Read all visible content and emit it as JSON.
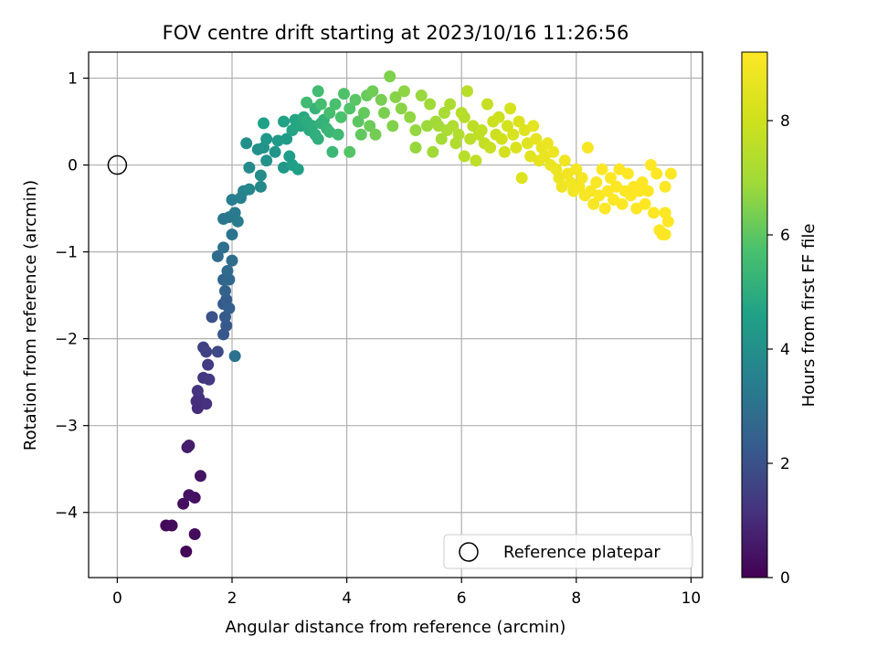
{
  "chart_data": {
    "type": "scatter",
    "title": "FOV centre drift starting at 2023/10/16 11:26:56",
    "xlabel": "Angular distance from reference (arcmin)",
    "ylabel": "Rotation from reference (arcmin)",
    "xlim": [
      -0.5,
      10.2
    ],
    "ylim": [
      -4.75,
      1.3
    ],
    "xticks": [
      0,
      2,
      4,
      6,
      8,
      10
    ],
    "yticks": [
      1,
      0,
      -1,
      -2,
      -3,
      -4
    ],
    "xtick_labels": [
      "0",
      "2",
      "4",
      "6",
      "8",
      "10"
    ],
    "ytick_labels": [
      "1",
      "0",
      "−1",
      "−2",
      "−3",
      "−4"
    ],
    "grid": true,
    "colormap": "viridis",
    "colorbar": {
      "label": "Hours from first FF file",
      "range": [
        0,
        9.2
      ],
      "ticks": [
        0,
        2,
        4,
        6,
        8
      ],
      "tick_labels": [
        "0",
        "2",
        "4",
        "6",
        "8"
      ]
    },
    "legend": {
      "position": "lower-right",
      "entries": [
        "Reference platepar"
      ]
    },
    "reference_point": {
      "x": 0,
      "y": 0,
      "marker": "open-circle"
    },
    "series": [
      {
        "colored_by": "hours",
        "points": [
          [
            1.2,
            -4.45,
            0.1
          ],
          [
            0.85,
            -4.15,
            0.15
          ],
          [
            0.95,
            -4.15,
            0.2
          ],
          [
            1.35,
            -4.25,
            0.25
          ],
          [
            1.15,
            -3.9,
            0.3
          ],
          [
            1.35,
            -3.83,
            0.35
          ],
          [
            1.25,
            -3.8,
            0.4
          ],
          [
            1.45,
            -3.58,
            0.45
          ],
          [
            1.22,
            -3.25,
            0.6
          ],
          [
            1.25,
            -3.23,
            0.65
          ],
          [
            1.4,
            -2.8,
            1.0
          ],
          [
            1.38,
            -2.72,
            1.05
          ],
          [
            1.42,
            -2.68,
            1.1
          ],
          [
            1.55,
            -2.75,
            1.15
          ],
          [
            1.4,
            -2.6,
            1.2
          ],
          [
            1.5,
            -2.45,
            1.3
          ],
          [
            1.6,
            -2.47,
            1.35
          ],
          [
            1.58,
            -2.3,
            1.45
          ],
          [
            1.5,
            -2.1,
            1.55
          ],
          [
            1.55,
            -2.15,
            1.6
          ],
          [
            1.75,
            -2.15,
            1.8
          ],
          [
            1.65,
            -1.75,
            2.0
          ],
          [
            1.85,
            -1.95,
            2.15
          ],
          [
            1.9,
            -1.85,
            2.2
          ],
          [
            1.88,
            -1.75,
            2.25
          ],
          [
            1.85,
            -1.6,
            2.3
          ],
          [
            1.9,
            -1.55,
            2.35
          ],
          [
            1.95,
            -1.65,
            2.4
          ],
          [
            1.88,
            -1.45,
            2.5
          ],
          [
            1.85,
            -1.32,
            2.6
          ],
          [
            1.95,
            -1.32,
            2.7
          ],
          [
            1.92,
            -1.22,
            2.75
          ],
          [
            1.75,
            -1.05,
            2.8
          ],
          [
            2.0,
            -1.1,
            2.85
          ],
          [
            1.85,
            -0.95,
            2.95
          ],
          [
            2.05,
            -2.2,
            3.0
          ],
          [
            2.0,
            -0.8,
            3.05
          ],
          [
            1.85,
            -0.62,
            3.15
          ],
          [
            1.95,
            -0.6,
            3.2
          ],
          [
            2.05,
            -0.55,
            3.3
          ],
          [
            2.1,
            -0.65,
            3.35
          ],
          [
            2.0,
            -0.4,
            3.4
          ],
          [
            2.15,
            -0.38,
            3.5
          ],
          [
            2.2,
            -0.3,
            3.6
          ],
          [
            2.3,
            -0.28,
            3.7
          ],
          [
            2.5,
            -0.25,
            3.8
          ],
          [
            2.3,
            -0.03,
            3.85
          ],
          [
            2.5,
            -0.12,
            3.9
          ],
          [
            2.25,
            0.25,
            4.0
          ],
          [
            2.45,
            0.18,
            4.05
          ],
          [
            2.6,
            0.05,
            4.1
          ],
          [
            2.55,
            0.2,
            4.15
          ],
          [
            2.75,
            0.15,
            4.2
          ],
          [
            2.6,
            0.3,
            4.25
          ],
          [
            2.9,
            -0.03,
            4.3
          ],
          [
            2.8,
            0.28,
            4.35
          ],
          [
            2.95,
            0.3,
            4.4
          ],
          [
            3.0,
            0.1,
            4.45
          ],
          [
            3.05,
            0.0,
            4.5
          ],
          [
            3.15,
            -0.05,
            4.55
          ],
          [
            2.55,
            0.48,
            4.6
          ],
          [
            2.9,
            0.5,
            4.65
          ],
          [
            3.05,
            0.4,
            4.7
          ],
          [
            3.1,
            0.52,
            4.75
          ],
          [
            3.2,
            0.45,
            4.8
          ],
          [
            3.25,
            0.55,
            4.85
          ],
          [
            3.35,
            0.4,
            4.9
          ],
          [
            3.3,
            0.5,
            4.95
          ],
          [
            3.4,
            0.45,
            5.0
          ],
          [
            3.45,
            0.35,
            5.05
          ],
          [
            3.5,
            0.3,
            5.1
          ],
          [
            3.55,
            0.48,
            5.15
          ],
          [
            3.6,
            0.52,
            5.2
          ],
          [
            3.45,
            0.65,
            5.25
          ],
          [
            3.65,
            0.42,
            5.3
          ],
          [
            3.7,
            0.38,
            5.35
          ],
          [
            3.75,
            0.15,
            5.4
          ],
          [
            3.85,
            0.35,
            5.45
          ],
          [
            3.3,
            0.72,
            5.5
          ],
          [
            3.5,
            0.85,
            5.55
          ],
          [
            3.55,
            0.7,
            5.6
          ],
          [
            3.7,
            0.6,
            5.65
          ],
          [
            3.8,
            0.7,
            5.7
          ],
          [
            3.9,
            0.55,
            5.75
          ],
          [
            3.95,
            0.82,
            5.8
          ],
          [
            4.05,
            0.65,
            5.85
          ],
          [
            4.05,
            0.15,
            5.9
          ],
          [
            4.15,
            0.75,
            5.95
          ],
          [
            4.2,
            0.5,
            6.0
          ],
          [
            4.25,
            0.35,
            6.05
          ],
          [
            4.3,
            0.6,
            6.1
          ],
          [
            4.35,
            0.8,
            6.15
          ],
          [
            4.4,
            0.45,
            6.2
          ],
          [
            4.45,
            0.85,
            6.25
          ],
          [
            4.5,
            0.35,
            6.3
          ],
          [
            4.6,
            0.75,
            6.35
          ],
          [
            4.65,
            0.6,
            6.4
          ],
          [
            4.75,
            1.02,
            6.45
          ],
          [
            4.8,
            0.45,
            6.5
          ],
          [
            4.85,
            0.78,
            6.55
          ],
          [
            4.95,
            0.65,
            6.6
          ],
          [
            5.0,
            0.85,
            6.65
          ],
          [
            5.1,
            0.55,
            6.7
          ],
          [
            5.2,
            0.4,
            6.75
          ],
          [
            5.2,
            0.2,
            6.78
          ],
          [
            5.3,
            0.8,
            6.8
          ],
          [
            5.4,
            0.45,
            6.85
          ],
          [
            5.45,
            0.7,
            6.9
          ],
          [
            5.5,
            0.15,
            6.92
          ],
          [
            5.55,
            0.5,
            6.95
          ],
          [
            5.6,
            0.45,
            7.0
          ],
          [
            5.65,
            0.3,
            7.05
          ],
          [
            5.7,
            0.6,
            7.1
          ],
          [
            5.75,
            0.4,
            7.15
          ],
          [
            5.8,
            0.7,
            7.2
          ],
          [
            5.85,
            0.45,
            7.25
          ],
          [
            5.9,
            0.25,
            7.3
          ],
          [
            5.95,
            0.35,
            7.35
          ],
          [
            6.0,
            0.6,
            7.4
          ],
          [
            6.05,
            0.55,
            7.45
          ],
          [
            6.05,
            0.1,
            7.48
          ],
          [
            6.1,
            0.85,
            7.5
          ],
          [
            6.15,
            0.3,
            7.55
          ],
          [
            6.2,
            0.45,
            7.6
          ],
          [
            6.25,
            0.05,
            7.62
          ],
          [
            6.3,
            0.35,
            7.65
          ],
          [
            6.35,
            0.4,
            7.7
          ],
          [
            6.4,
            0.25,
            7.75
          ],
          [
            6.45,
            0.7,
            7.8
          ],
          [
            6.5,
            0.2,
            7.85
          ],
          [
            6.55,
            0.5,
            7.9
          ],
          [
            6.6,
            0.35,
            7.95
          ],
          [
            6.65,
            0.55,
            8.0
          ],
          [
            6.7,
            0.3,
            8.05
          ],
          [
            6.75,
            0.15,
            8.1
          ],
          [
            6.8,
            0.45,
            8.15
          ],
          [
            6.85,
            0.65,
            8.2
          ],
          [
            6.9,
            0.35,
            8.25
          ],
          [
            6.95,
            0.2,
            8.3
          ],
          [
            7.0,
            0.5,
            8.35
          ],
          [
            7.05,
            -0.15,
            8.38
          ],
          [
            7.1,
            0.4,
            8.4
          ],
          [
            7.15,
            0.25,
            8.45
          ],
          [
            7.2,
            0.1,
            8.5
          ],
          [
            7.25,
            0.45,
            8.55
          ],
          [
            7.3,
            0.3,
            8.6
          ],
          [
            7.35,
            0.05,
            8.62
          ],
          [
            7.4,
            0.2,
            8.65
          ],
          [
            7.45,
            0.1,
            8.7
          ],
          [
            7.5,
            0.25,
            8.72
          ],
          [
            7.55,
            0.0,
            8.75
          ],
          [
            7.6,
            0.15,
            8.78
          ],
          [
            7.65,
            -0.05,
            8.8
          ],
          [
            7.7,
            -0.15,
            8.82
          ],
          [
            7.75,
            -0.25,
            8.85
          ],
          [
            7.8,
            0.05,
            8.88
          ],
          [
            7.85,
            -0.1,
            8.9
          ],
          [
            7.9,
            -0.2,
            8.92
          ],
          [
            7.95,
            -0.3,
            8.94
          ],
          [
            8.0,
            -0.05,
            8.96
          ],
          [
            8.05,
            -0.25,
            8.98
          ],
          [
            8.1,
            -0.15,
            9.0
          ],
          [
            8.15,
            -0.35,
            9.02
          ],
          [
            8.2,
            0.2,
            9.04
          ],
          [
            8.25,
            -0.3,
            9.06
          ],
          [
            8.3,
            -0.45,
            9.08
          ],
          [
            8.35,
            -0.2,
            9.1
          ],
          [
            8.4,
            -0.35,
            9.12
          ],
          [
            8.45,
            -0.05,
            9.14
          ],
          [
            8.5,
            -0.5,
            9.15
          ],
          [
            8.55,
            -0.3,
            9.16
          ],
          [
            8.6,
            -0.15,
            9.17
          ],
          [
            8.65,
            -0.4,
            9.18
          ],
          [
            8.7,
            -0.25,
            9.18
          ],
          [
            8.75,
            -0.05,
            9.19
          ],
          [
            8.8,
            -0.45,
            9.19
          ],
          [
            8.85,
            -0.3,
            9.2
          ],
          [
            8.9,
            -0.1,
            9.2
          ],
          [
            8.95,
            -0.35,
            9.2
          ],
          [
            9.0,
            -0.25,
            9.2
          ],
          [
            9.05,
            -0.5,
            9.2
          ],
          [
            9.1,
            -0.3,
            9.2
          ],
          [
            9.15,
            -0.2,
            9.2
          ],
          [
            9.2,
            -0.45,
            9.2
          ],
          [
            9.25,
            -0.3,
            9.2
          ],
          [
            9.3,
            0.0,
            9.2
          ],
          [
            9.35,
            -0.55,
            9.2
          ],
          [
            9.4,
            -0.1,
            9.2
          ],
          [
            9.45,
            -0.75,
            9.2
          ],
          [
            9.5,
            -0.8,
            9.2
          ],
          [
            9.55,
            -0.25,
            9.2
          ],
          [
            9.55,
            -0.55,
            9.2
          ],
          [
            9.6,
            -0.65,
            9.2
          ],
          [
            9.65,
            -0.1,
            9.2
          ],
          [
            9.55,
            -0.8,
            9.2
          ]
        ]
      }
    ]
  }
}
